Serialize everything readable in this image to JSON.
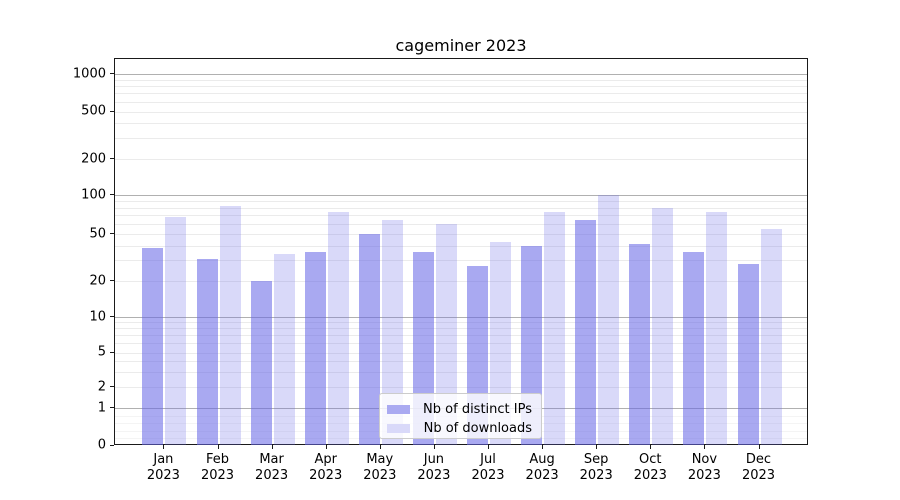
{
  "title": "cageminer 2023",
  "legend": {
    "position": "lower center",
    "items": [
      {
        "label": "Nb of distinct IPs",
        "color": "rgba(102,102,230,0.56)",
        "solid_hex": "#aaaaf1"
      },
      {
        "label": "Nb of downloads",
        "color": "rgba(102,102,230,0.25)",
        "solid_hex": "#d9d9f9"
      }
    ]
  },
  "colors": {
    "bar_base": "#6666e6",
    "grid_major": "#b0b0b0",
    "grid_minor": "#ebebeb",
    "axis": "#1a1a1a",
    "text": "#000000",
    "background": "#ffffff"
  },
  "chart_data": {
    "type": "bar",
    "title": "cageminer 2023",
    "categories": [
      "Jan 2023",
      "Feb 2023",
      "Mar 2023",
      "Apr 2023",
      "May 2023",
      "Jun 2023",
      "Jul 2023",
      "Aug 2023",
      "Sep 2023",
      "Oct 2023",
      "Nov 2023",
      "Dec 2023"
    ],
    "category_lines": [
      {
        "month": "Jan",
        "year": "2023"
      },
      {
        "month": "Feb",
        "year": "2023"
      },
      {
        "month": "Mar",
        "year": "2023"
      },
      {
        "month": "Apr",
        "year": "2023"
      },
      {
        "month": "May",
        "year": "2023"
      },
      {
        "month": "Jun",
        "year": "2023"
      },
      {
        "month": "Jul",
        "year": "2023"
      },
      {
        "month": "Aug",
        "year": "2023"
      },
      {
        "month": "Sep",
        "year": "2023"
      },
      {
        "month": "Oct",
        "year": "2023"
      },
      {
        "month": "Nov",
        "year": "2023"
      },
      {
        "month": "Dec",
        "year": "2023"
      }
    ],
    "series": [
      {
        "name": "Nb of distinct IPs",
        "values": [
          38,
          31,
          20,
          35,
          50,
          35,
          27,
          40,
          65,
          41,
          35,
          28
        ]
      },
      {
        "name": "Nb of downloads",
        "values": [
          68,
          82,
          34,
          74,
          64,
          60,
          43,
          74,
          101,
          80,
          74,
          55
        ]
      }
    ],
    "xlabel": "",
    "ylabel": "",
    "yscale": "symlog",
    "yticks": [
      0,
      1,
      2,
      5,
      10,
      20,
      50,
      100,
      200,
      500,
      1000
    ],
    "ylim": [
      0,
      1300
    ],
    "grid": "both",
    "legend_position": "lower center"
  }
}
